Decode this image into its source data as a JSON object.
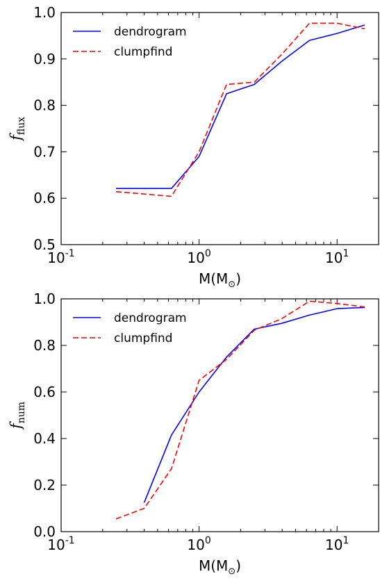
{
  "colors": {
    "dendrogram": "#0000ff",
    "clumpfind": "#ff0000",
    "axis": "#000000",
    "background": "#ffffff"
  },
  "chart_data": [
    {
      "type": "line",
      "xscale": "log",
      "xlim": [
        0.1,
        20
      ],
      "ylim": [
        0.5,
        1.0
      ],
      "grid": false,
      "legend_position": "top-left",
      "xlabel": "M(M⊙)",
      "xlabel_main": "M(M",
      "xlabel_close": ")",
      "ylabel": "f_flux",
      "ylabel_main": "f",
      "ylabel_sub": "flux",
      "x_tick_values": [
        0.1,
        1,
        10
      ],
      "x_tick_labels": [
        [
          "10",
          "-1"
        ],
        [
          "10",
          "0"
        ],
        [
          "10",
          "1"
        ]
      ],
      "y_tick_values": [
        0.5,
        0.6,
        0.7,
        0.8,
        0.9,
        1.0
      ],
      "y_tick_labels": [
        "0.5",
        "0.6",
        "0.7",
        "0.8",
        "0.9",
        "1.0"
      ],
      "series": [
        {
          "name": "dendrogram",
          "style": "solid",
          "x": [
            0.25,
            0.63,
            1.0,
            1.58,
            2.51,
            3.98,
            6.31,
            10.0,
            15.85
          ],
          "y": [
            0.621,
            0.621,
            0.69,
            0.825,
            0.845,
            0.895,
            0.94,
            0.955,
            0.973
          ]
        },
        {
          "name": "clumpfind",
          "style": "dashed",
          "x": [
            0.25,
            0.63,
            1.0,
            1.58,
            2.51,
            3.98,
            6.31,
            10.0,
            15.85
          ],
          "y": [
            0.614,
            0.604,
            0.7,
            0.845,
            0.85,
            0.91,
            0.977,
            0.977,
            0.965
          ]
        }
      ]
    },
    {
      "type": "line",
      "xscale": "log",
      "xlim": [
        0.1,
        20
      ],
      "ylim": [
        0.0,
        1.0
      ],
      "grid": false,
      "legend_position": "top-left",
      "xlabel": "M(M⊙)",
      "xlabel_main": "M(M",
      "xlabel_close": ")",
      "ylabel": "f_num",
      "ylabel_main": "f",
      "ylabel_sub": "num",
      "x_tick_values": [
        0.1,
        1,
        10
      ],
      "x_tick_labels": [
        [
          "10",
          "-1"
        ],
        [
          "10",
          "0"
        ],
        [
          "10",
          "1"
        ]
      ],
      "y_tick_values": [
        0.0,
        0.2,
        0.4,
        0.6,
        0.8,
        1.0
      ],
      "y_tick_labels": [
        "0.0",
        "0.2",
        "0.4",
        "0.6",
        "0.8",
        "1.0"
      ],
      "series": [
        {
          "name": "dendrogram",
          "style": "solid",
          "x": [
            0.4,
            0.63,
            1.0,
            1.58,
            2.51,
            3.98,
            6.31,
            10.0,
            15.85
          ],
          "y": [
            0.125,
            0.415,
            0.6,
            0.75,
            0.87,
            0.895,
            0.93,
            0.958,
            0.963
          ]
        },
        {
          "name": "clumpfind",
          "style": "dashed",
          "x": [
            0.25,
            0.4,
            0.63,
            1.0,
            1.58,
            2.51,
            3.98,
            6.31,
            10.0,
            15.85
          ],
          "y": [
            0.055,
            0.1,
            0.27,
            0.65,
            0.74,
            0.865,
            0.915,
            0.99,
            0.98,
            0.965
          ]
        }
      ]
    }
  ]
}
